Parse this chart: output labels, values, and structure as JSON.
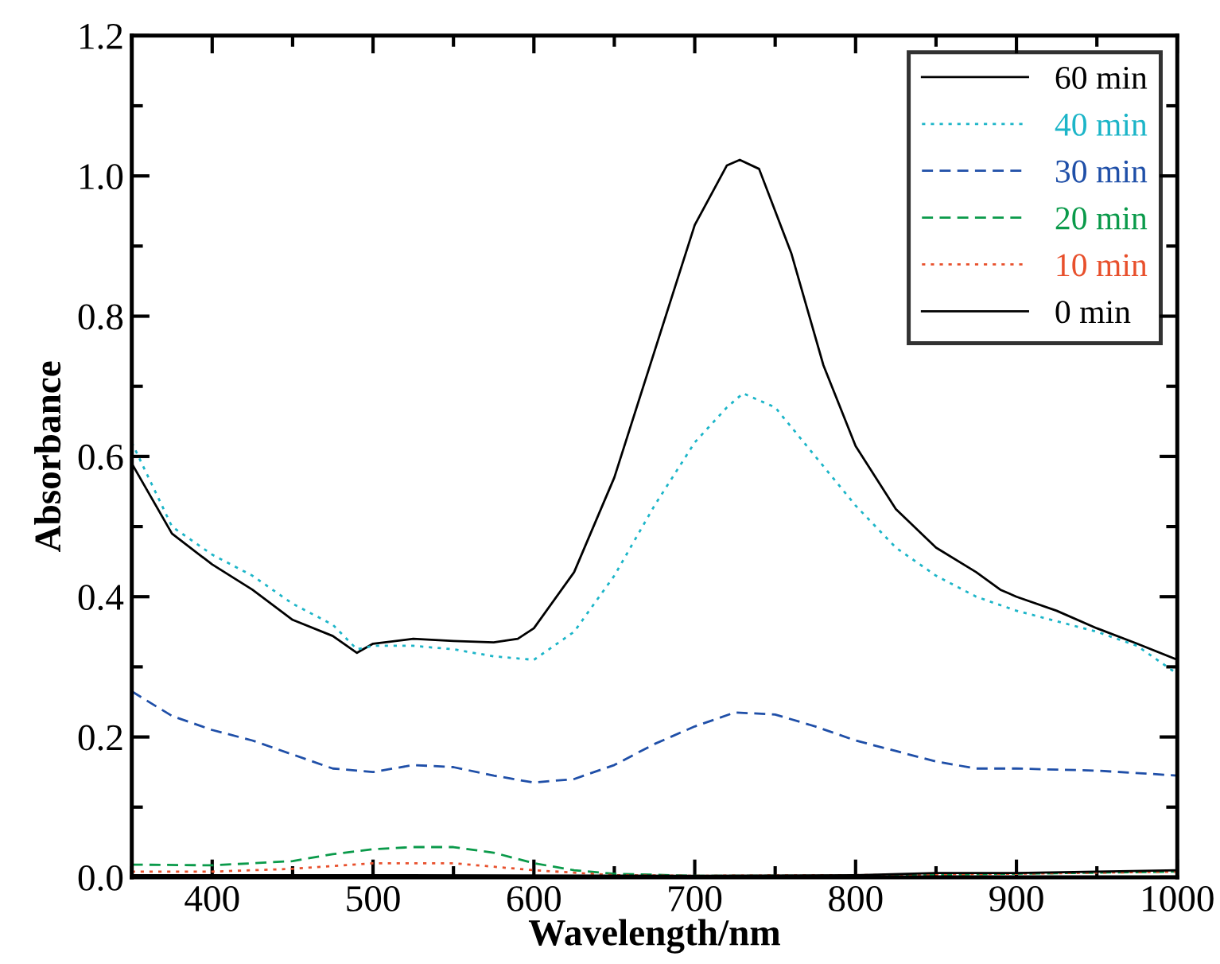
{
  "chart_data": {
    "type": "line",
    "xlabel": "Wavelength/nm",
    "ylabel": "Absorbance",
    "xlim": [
      350,
      1000
    ],
    "xticks": [
      400,
      500,
      600,
      700,
      800,
      900,
      1000
    ],
    "ylim": [
      0,
      1.2
    ],
    "yticks": [
      {
        "value": 0,
        "label": "0.0"
      },
      0.2,
      0.4,
      0.6,
      0.8,
      {
        "value": 1.0,
        "label": "1.0"
      },
      1.2
    ],
    "grid": false,
    "legend": "top right",
    "marker": "none",
    "series": [
      {
        "name": "60 min",
        "color": "#000000",
        "line_style": "solid",
        "x": [
          350,
          375,
          400,
          425,
          450,
          475,
          490,
          500,
          525,
          550,
          575,
          590,
          600,
          625,
          650,
          675,
          700,
          720,
          728,
          740,
          760,
          780,
          800,
          825,
          850,
          875,
          890,
          900,
          925,
          950,
          975,
          1000
        ],
        "values": [
          0.59,
          0.49,
          0.446,
          0.41,
          0.367,
          0.344,
          0.32,
          0.333,
          0.34,
          0.337,
          0.335,
          0.34,
          0.355,
          0.435,
          0.57,
          0.75,
          0.93,
          1.015,
          1.023,
          1.01,
          0.89,
          0.73,
          0.615,
          0.525,
          0.47,
          0.435,
          0.41,
          0.4,
          0.38,
          0.355,
          0.333,
          0.31
        ]
      },
      {
        "name": "40 min",
        "color": "#1cb5c8",
        "line_style": "dotted",
        "x": [
          350,
          375,
          400,
          425,
          450,
          475,
          490,
          500,
          525,
          550,
          575,
          600,
          625,
          650,
          675,
          700,
          720,
          730,
          750,
          775,
          800,
          825,
          850,
          875,
          900,
          925,
          950,
          975,
          1000
        ],
        "values": [
          0.62,
          0.5,
          0.46,
          0.43,
          0.39,
          0.36,
          0.325,
          0.33,
          0.33,
          0.325,
          0.315,
          0.31,
          0.35,
          0.43,
          0.53,
          0.62,
          0.67,
          0.69,
          0.67,
          0.6,
          0.53,
          0.47,
          0.43,
          0.4,
          0.38,
          0.365,
          0.35,
          0.33,
          0.29
        ]
      },
      {
        "name": "30 min",
        "color": "#1f4fa8",
        "line_style": "dashed",
        "x": [
          350,
          375,
          400,
          425,
          450,
          475,
          500,
          525,
          550,
          575,
          600,
          625,
          650,
          675,
          700,
          725,
          750,
          775,
          800,
          825,
          850,
          875,
          900,
          950,
          1000
        ],
        "values": [
          0.265,
          0.23,
          0.21,
          0.195,
          0.175,
          0.155,
          0.15,
          0.16,
          0.157,
          0.145,
          0.135,
          0.14,
          0.16,
          0.19,
          0.215,
          0.235,
          0.232,
          0.215,
          0.195,
          0.18,
          0.165,
          0.155,
          0.155,
          0.152,
          0.145
        ]
      },
      {
        "name": "20 min",
        "color": "#0a9a4a",
        "line_style": "dashed",
        "x": [
          350,
          400,
          450,
          475,
          500,
          525,
          550,
          575,
          600,
          625,
          650,
          700,
          800,
          900,
          1000
        ],
        "values": [
          0.018,
          0.017,
          0.023,
          0.033,
          0.04,
          0.043,
          0.043,
          0.035,
          0.02,
          0.01,
          0.005,
          0.002,
          0.002,
          0.005,
          0.008
        ]
      },
      {
        "name": "10 min",
        "color": "#e8502c",
        "line_style": "dotted",
        "x": [
          350,
          400,
          450,
          500,
          550,
          600,
          650,
          700,
          800,
          900,
          1000
        ],
        "values": [
          0.008,
          0.008,
          0.012,
          0.02,
          0.02,
          0.01,
          0.003,
          0.002,
          0.003,
          0.005,
          0.008
        ]
      },
      {
        "name": "0 min",
        "color": "#000000",
        "line_style": "solid",
        "x": [
          350,
          500,
          700,
          800,
          850,
          900,
          950,
          1000
        ],
        "values": [
          0.003,
          0.003,
          0.002,
          0.003,
          0.006,
          0.006,
          0.008,
          0.01
        ]
      }
    ]
  }
}
